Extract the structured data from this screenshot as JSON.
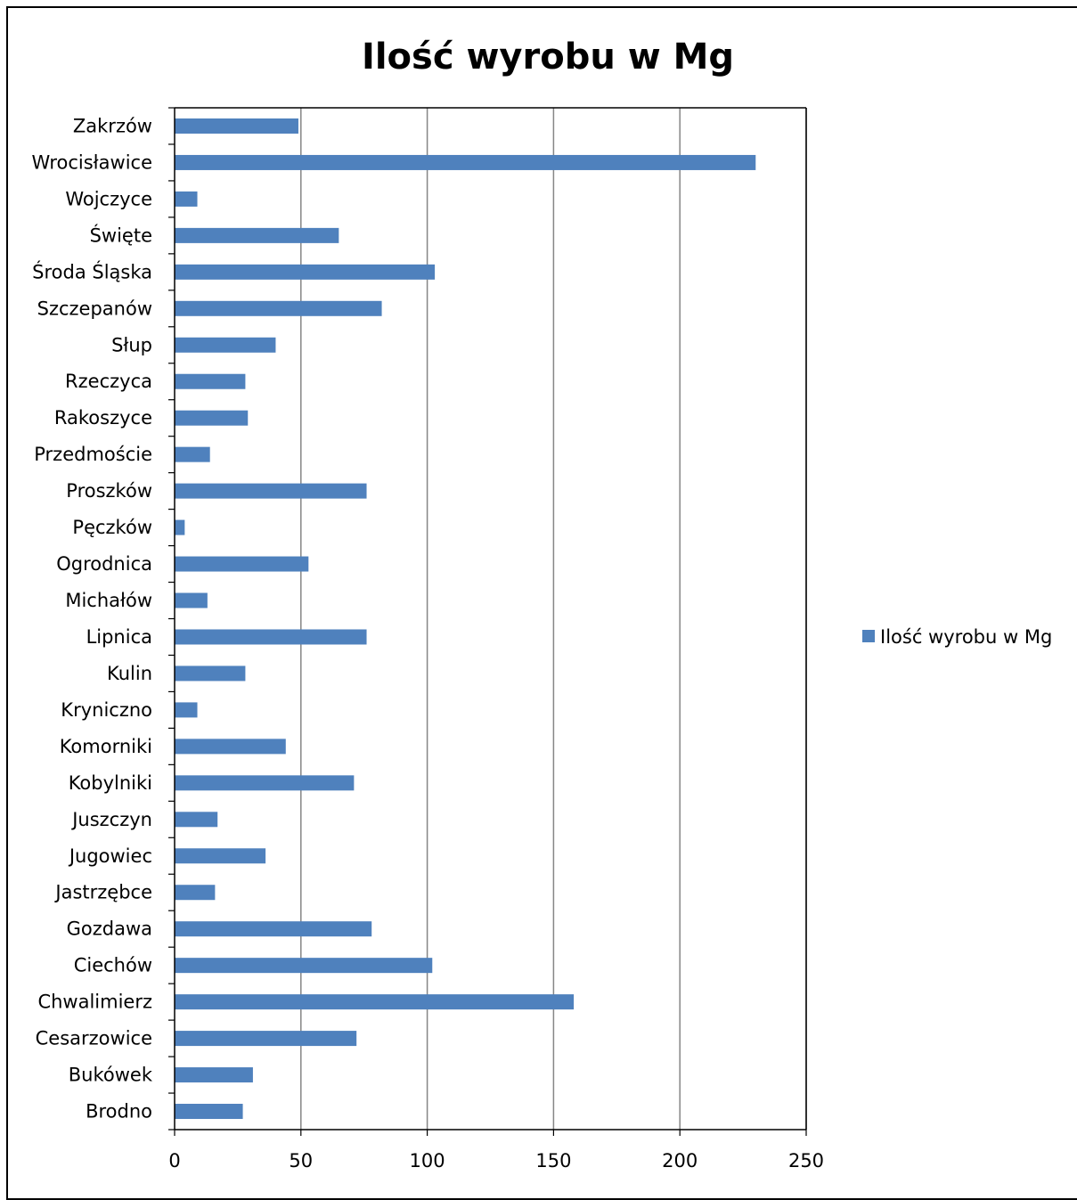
{
  "chart_data": {
    "type": "bar",
    "orientation": "horizontal",
    "title": "Ilość wyrobu w Mg",
    "xlabel": "",
    "ylabel": "",
    "xlim": [
      0,
      250
    ],
    "x_ticks": [
      "0",
      "50",
      "100",
      "150",
      "200",
      "250"
    ],
    "grid": "vertical major gridlines",
    "legend_position": "right",
    "bar_color": "#4f81bd",
    "categories": [
      "Zakrzów",
      "Wrocisławice",
      "Wojczyce",
      "Święte",
      "Środa Śląska",
      "Szczepanów",
      "Słup",
      "Rzeczyca",
      "Rakoszyce",
      "Przedmoście",
      "Proszków",
      "Pęczków",
      "Ogrodnica",
      "Michałów",
      "Lipnica",
      "Kulin",
      "Kryniczno",
      "Komorniki",
      "Kobylniki",
      "Juszczyn",
      "Jugowiec",
      "Jastrzębce",
      "Gozdawa",
      "Ciechów",
      "Chwalimierz",
      "Cesarzowice",
      "Bukówek",
      "Brodno"
    ],
    "series": [
      {
        "name": "Ilość wyrobu w Mg",
        "values": [
          49,
          230,
          9,
          65,
          103,
          82,
          40,
          28,
          29,
          14,
          76,
          4,
          53,
          13,
          76,
          28,
          9,
          44,
          71,
          17,
          36,
          16,
          78,
          102,
          158,
          72,
          31,
          27
        ]
      }
    ]
  }
}
